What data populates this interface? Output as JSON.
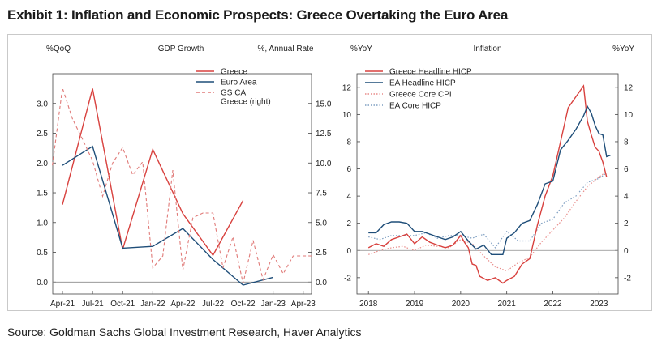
{
  "exhibit_title": "Exhibit 1: Inflation and Economic Prospects: Greece Overtaking the Euro Area",
  "source": "Source: Goldman Sachs Global Investment Research, Haver Analytics",
  "chart_data": [
    {
      "type": "line",
      "title": "GDP Growth",
      "ylabel_left": "%QoQ",
      "ylabel_right": "%, Annual Rate",
      "categories": [
        "Apr-21",
        "Jul-21",
        "Oct-21",
        "Jan-22",
        "Apr-22",
        "Jul-22",
        "Oct-22",
        "Jan-23",
        "Apr-23"
      ],
      "ylim_left": [
        -0.2,
        3.5
      ],
      "yticks_left": [
        "0.0",
        "0.5",
        "1.0",
        "1.5",
        "2.0",
        "2.5",
        "3.0"
      ],
      "ylim_right": [
        -1.0,
        17.5
      ],
      "yticks_right": [
        "0.0",
        "2.5",
        "5.0",
        "7.5",
        "10.0",
        "12.5",
        "15.0"
      ],
      "legend_position": "top-right",
      "grid": false,
      "series": [
        {
          "name": "Greece",
          "axis": "left",
          "color": "#d8413e",
          "dash": "solid",
          "points": [
            [
              "2021Q1",
              1.3
            ],
            [
              "2021Q2",
              3.25
            ],
            [
              "2021Q3",
              0.55
            ],
            [
              "2021Q4",
              2.23
            ],
            [
              "2022Q1",
              1.15
            ],
            [
              "2022Q2",
              0.45
            ],
            [
              "2022Q3",
              1.37
            ]
          ]
        },
        {
          "name": "Euro Area",
          "axis": "left",
          "color": "#1f4e79",
          "dash": "solid",
          "points": [
            [
              "2021Q1",
              1.96
            ],
            [
              "2021Q2",
              2.28
            ],
            [
              "2021Q3",
              0.57
            ],
            [
              "2021Q4",
              0.6
            ],
            [
              "2022Q1",
              0.9
            ],
            [
              "2022Q2",
              0.38
            ],
            [
              "2022Q3",
              -0.05
            ],
            [
              "2022Q4",
              0.08
            ]
          ]
        },
        {
          "name": "GS CAI\nGreece (right)",
          "axis": "right",
          "color": "#e07a78",
          "dash": "dashed",
          "points": [
            [
              "2021-03",
              9.8
            ],
            [
              "2021-04",
              16.3
            ],
            [
              "2021-05",
              13.7
            ],
            [
              "2021-06",
              12.0
            ],
            [
              "2021-07",
              10.2
            ],
            [
              "2021-08",
              7.2
            ],
            [
              "2021-09",
              10.0
            ],
            [
              "2021-10",
              11.3
            ],
            [
              "2021-11",
              9.0
            ],
            [
              "2021-12",
              10.1
            ],
            [
              "2022-01",
              1.2
            ],
            [
              "2022-02",
              2.2
            ],
            [
              "2022-03",
              9.4
            ],
            [
              "2022-04",
              1.0
            ],
            [
              "2022-05",
              5.4
            ],
            [
              "2022-06",
              5.8
            ],
            [
              "2022-07",
              5.8
            ],
            [
              "2022-08",
              1.2
            ],
            [
              "2022-09",
              3.8
            ],
            [
              "2022-10",
              -0.1
            ],
            [
              "2022-11",
              3.5
            ],
            [
              "2022-12",
              0.2
            ],
            [
              "2023-01",
              2.3
            ],
            [
              "2023-02",
              0.7
            ],
            [
              "2023-03",
              2.2
            ],
            [
              "2023-04",
              2.2
            ],
            [
              "2023-05",
              2.2
            ]
          ]
        }
      ]
    },
    {
      "type": "line",
      "title": "Inflation",
      "ylabel_left": "%YoY",
      "ylabel_right": "%YoY",
      "x_range": [
        "2017-10",
        "2023-06"
      ],
      "xticks": [
        "2018",
        "2019",
        "2020",
        "2021",
        "2022",
        "2023"
      ],
      "ylim": [
        -3.2,
        13.0
      ],
      "yticks": [
        "-2",
        "0",
        "2",
        "4",
        "6",
        "8",
        "10",
        "12"
      ],
      "legend_position": "top-left",
      "grid": false,
      "reference_line": 0,
      "series": [
        {
          "name": "Greece Headline HICP",
          "color": "#d8413e",
          "dash": "solid",
          "points": [
            [
              "2018-01",
              0.2
            ],
            [
              "2018-03",
              0.5
            ],
            [
              "2018-05",
              0.3
            ],
            [
              "2018-07",
              0.8
            ],
            [
              "2018-09",
              1.0
            ],
            [
              "2018-11",
              1.2
            ],
            [
              "2019-01",
              0.5
            ],
            [
              "2019-03",
              1.0
            ],
            [
              "2019-05",
              0.6
            ],
            [
              "2019-07",
              0.4
            ],
            [
              "2019-09",
              0.2
            ],
            [
              "2019-11",
              0.4
            ],
            [
              "2020-01",
              1.1
            ],
            [
              "2020-02",
              0.6
            ],
            [
              "2020-03",
              0.2
            ],
            [
              "2020-04",
              -1.0
            ],
            [
              "2020-05",
              -1.1
            ],
            [
              "2020-06",
              -1.9
            ],
            [
              "2020-08",
              -2.2
            ],
            [
              "2020-10",
              -2.0
            ],
            [
              "2020-12",
              -2.4
            ],
            [
              "2021-01",
              -2.2
            ],
            [
              "2021-03",
              -1.9
            ],
            [
              "2021-05",
              -1.0
            ],
            [
              "2021-07",
              -0.6
            ],
            [
              "2021-09",
              1.9
            ],
            [
              "2021-11",
              4.0
            ],
            [
              "2022-01",
              5.5
            ],
            [
              "2022-03",
              8.0
            ],
            [
              "2022-05",
              10.5
            ],
            [
              "2022-07",
              11.3
            ],
            [
              "2022-09",
              12.1
            ],
            [
              "2022-10",
              9.5
            ],
            [
              "2022-11",
              8.5
            ],
            [
              "2022-12",
              7.6
            ],
            [
              "2023-01",
              7.3
            ],
            [
              "2023-02",
              6.5
            ],
            [
              "2023-03",
              5.4
            ]
          ]
        },
        {
          "name": "EA Headline HICP",
          "color": "#1f4e79",
          "dash": "solid",
          "points": [
            [
              "2018-01",
              1.3
            ],
            [
              "2018-03",
              1.3
            ],
            [
              "2018-05",
              1.9
            ],
            [
              "2018-07",
              2.1
            ],
            [
              "2018-09",
              2.1
            ],
            [
              "2018-11",
              2.0
            ],
            [
              "2019-01",
              1.4
            ],
            [
              "2019-03",
              1.4
            ],
            [
              "2019-05",
              1.2
            ],
            [
              "2019-07",
              1.0
            ],
            [
              "2019-09",
              0.8
            ],
            [
              "2019-11",
              1.0
            ],
            [
              "2020-01",
              1.4
            ],
            [
              "2020-03",
              0.7
            ],
            [
              "2020-05",
              0.1
            ],
            [
              "2020-07",
              0.4
            ],
            [
              "2020-09",
              -0.3
            ],
            [
              "2020-11",
              -0.3
            ],
            [
              "2020-12",
              -0.3
            ],
            [
              "2021-01",
              0.9
            ],
            [
              "2021-03",
              1.3
            ],
            [
              "2021-05",
              2.0
            ],
            [
              "2021-07",
              2.2
            ],
            [
              "2021-09",
              3.4
            ],
            [
              "2021-11",
              4.9
            ],
            [
              "2022-01",
              5.1
            ],
            [
              "2022-03",
              7.4
            ],
            [
              "2022-05",
              8.1
            ],
            [
              "2022-07",
              8.9
            ],
            [
              "2022-09",
              9.9
            ],
            [
              "2022-10",
              10.6
            ],
            [
              "2022-11",
              10.1
            ],
            [
              "2022-12",
              9.2
            ],
            [
              "2023-01",
              8.6
            ],
            [
              "2023-02",
              8.5
            ],
            [
              "2023-03",
              6.9
            ],
            [
              "2023-04",
              7.0
            ]
          ]
        },
        {
          "name": "Greece Core CPI",
          "color": "#e88c8a",
          "dash": "dotted",
          "points": [
            [
              "2018-01",
              -0.3
            ],
            [
              "2018-04",
              0.0
            ],
            [
              "2018-07",
              0.2
            ],
            [
              "2018-10",
              0.3
            ],
            [
              "2019-01",
              0.0
            ],
            [
              "2019-04",
              0.4
            ],
            [
              "2019-07",
              0.3
            ],
            [
              "2019-10",
              0.2
            ],
            [
              "2020-01",
              0.8
            ],
            [
              "2020-04",
              0.5
            ],
            [
              "2020-07",
              -0.4
            ],
            [
              "2020-10",
              -1.2
            ],
            [
              "2021-01",
              -1.5
            ],
            [
              "2021-04",
              -0.9
            ],
            [
              "2021-07",
              -0.5
            ],
            [
              "2021-10",
              0.6
            ],
            [
              "2022-01",
              1.5
            ],
            [
              "2022-04",
              2.4
            ],
            [
              "2022-07",
              3.6
            ],
            [
              "2022-10",
              4.7
            ],
            [
              "2023-01",
              5.4
            ],
            [
              "2023-03",
              5.8
            ]
          ]
        },
        {
          "name": "EA Core HICP",
          "color": "#7f9fc2",
          "dash": "dotted",
          "points": [
            [
              "2018-01",
              1.0
            ],
            [
              "2018-04",
              0.8
            ],
            [
              "2018-07",
              1.1
            ],
            [
              "2018-10",
              1.1
            ],
            [
              "2019-01",
              1.1
            ],
            [
              "2019-04",
              1.3
            ],
            [
              "2019-07",
              0.9
            ],
            [
              "2019-10",
              1.1
            ],
            [
              "2020-01",
              1.1
            ],
            [
              "2020-04",
              0.9
            ],
            [
              "2020-07",
              1.2
            ],
            [
              "2020-10",
              0.2
            ],
            [
              "2021-01",
              1.4
            ],
            [
              "2021-04",
              0.7
            ],
            [
              "2021-07",
              0.7
            ],
            [
              "2021-10",
              2.0
            ],
            [
              "2022-01",
              2.3
            ],
            [
              "2022-04",
              3.5
            ],
            [
              "2022-07",
              4.0
            ],
            [
              "2022-10",
              5.0
            ],
            [
              "2023-01",
              5.3
            ],
            [
              "2023-03",
              5.7
            ]
          ]
        }
      ]
    }
  ]
}
